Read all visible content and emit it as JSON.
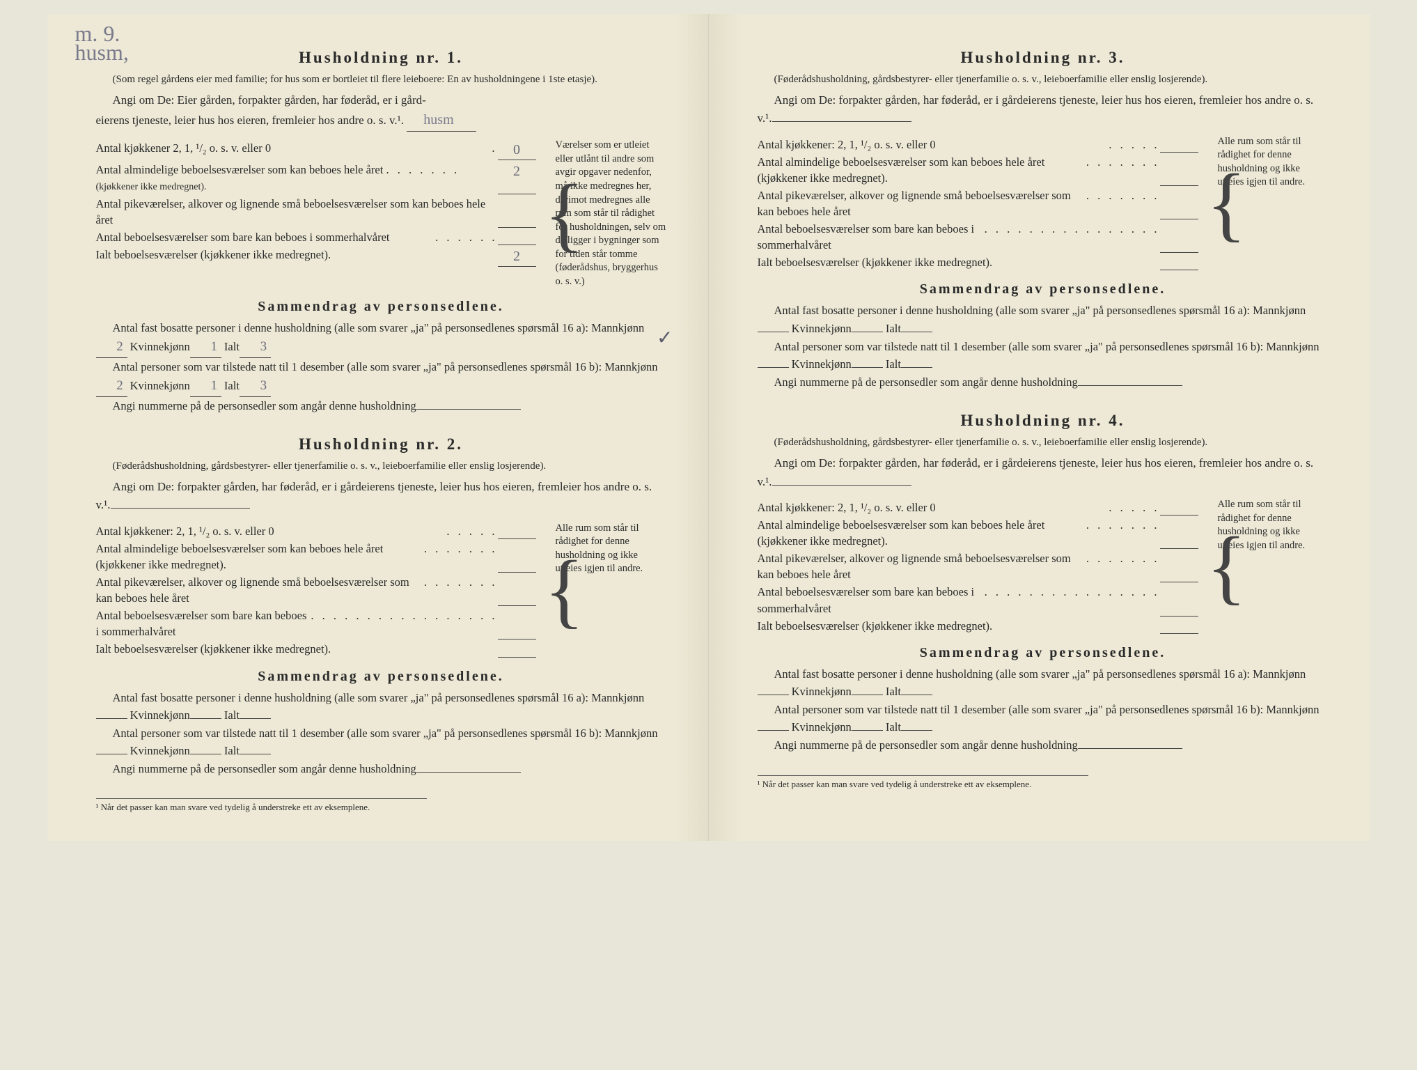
{
  "handnote_top": "m. 9.\nhusm,",
  "sections": [
    {
      "title": "Husholdning nr. 1.",
      "note": "(Som regel gårdens eier med familie; for hus som er bortleiet til flere leieboere: En av husholdningene i 1ste etasje).",
      "prompt_pre": "Angi om De:  Eier gården, forpakter gården, har føderåd, er i gård-",
      "prompt_post": "eierens tjeneste, leier hus hos eieren, fremleier hos andre o. s. v.¹.",
      "prompt_answer": "husm",
      "rows": [
        {
          "label": "Antal kjøkkener 2, 1, ¹/₂ o. s. v. eller 0",
          "value": "0"
        },
        {
          "label": "Antal almindelige beboelsesværelser som kan beboes hele året",
          "value": "2",
          "sub": "(kjøkkener ikke medregnet)."
        },
        {
          "label": "Antal pikeværelser, alkover og lignende små beboelsesværelser som kan beboes hele året",
          "value": ""
        },
        {
          "label": "Antal beboelsesværelser som bare kan beboes i sommerhalvåret",
          "value": ""
        },
        {
          "label": "Ialt beboelsesværelser (kjøkkener ikke medregnet).",
          "value": "2"
        }
      ],
      "sidenote": "Værelser som er utleiet eller utlånt til andre som avgir opgaver nedenfor, må ikke medregnes her, derimot medregnes alle rum som står til rådighet for husholdningen, selv om de ligger i bygninger som for tiden står tomme (føderådshus, bryggerhus o. s. v.)",
      "summary_title": "Sammendrag av personsedlene.",
      "s1": "Antal fast bosatte personer i denne husholdning (alle som svarer „ja\" på personsedlenes spørsmål 16 a):",
      "s1_m": "2",
      "s1_k": "1",
      "s1_i": "3",
      "s2": "Antal personer som var tilstede natt til 1 desember (alle som svarer „ja\" på personsedlenes spørsmål 16 b):",
      "s2_m": "2",
      "s2_k": "1",
      "s2_i": "3",
      "s3": "Angi nummerne på de personsedler som angår denne husholdning",
      "checkmark": "✓"
    },
    {
      "title": "Husholdning nr. 2.",
      "note": "(Føderådshusholdning, gårdsbestyrer- eller tjenerfamilie o. s. v., leieboerfamilie eller enslig losjerende).",
      "prompt": "Angi om De:  forpakter gården, har føderåd, er i gårdeierens tjeneste, leier hus hos eieren, fremleier hos andre o. s. v.¹.",
      "rows": [
        {
          "label": "Antal kjøkkener: 2, 1, ¹/₂ o. s. v. eller 0",
          "value": ""
        },
        {
          "label": "Antal almindelige beboelsesværelser som kan beboes hele året (kjøkkener ikke medregnet).",
          "value": ""
        },
        {
          "label": "Antal pikeværelser, alkover og lignende små beboelsesværelser som kan beboes hele året",
          "value": ""
        },
        {
          "label": "Antal beboelsesværelser som bare kan beboes i sommerhalvåret",
          "value": ""
        },
        {
          "label": "Ialt beboelsesværelser (kjøkkener ikke medregnet).",
          "value": ""
        }
      ],
      "sidenote": "Alle rum som står til rådighet for denne husholdning og ikke utleies igjen til andre.",
      "summary_title": "Sammendrag av personsedlene.",
      "s1": "Antal fast bosatte personer i denne husholdning (alle som svarer „ja\" på personsedlenes spørsmål 16 a):",
      "s2": "Antal personer som var tilstede natt til 1 desember (alle som svarer „ja\" på personsedlenes spørsmål 16 b):",
      "s3": "Angi nummerne på de personsedler som angår denne husholdning"
    },
    {
      "title": "Husholdning nr. 3.",
      "note": "(Føderådshusholdning, gårdsbestyrer- eller tjenerfamilie o. s. v., leieboerfamilie eller enslig losjerende).",
      "prompt": "Angi om De:  forpakter gården, har føderåd, er i gårdeierens tjeneste, leier hus hos eieren, fremleier hos andre o. s. v.¹.",
      "rows": [
        {
          "label": "Antal kjøkkener: 2, 1, ¹/₂ o. s. v. eller 0",
          "value": ""
        },
        {
          "label": "Antal almindelige beboelsesværelser som kan beboes hele året (kjøkkener ikke medregnet).",
          "value": ""
        },
        {
          "label": "Antal pikeværelser, alkover og lignende små beboelsesværelser som kan beboes hele året",
          "value": ""
        },
        {
          "label": "Antal beboelsesværelser som bare kan beboes i sommerhalvåret",
          "value": ""
        },
        {
          "label": "Ialt beboelsesværelser (kjøkkener ikke medregnet).",
          "value": ""
        }
      ],
      "sidenote": "Alle rum som står til rådighet for denne husholdning og ikke utleies igjen til andre.",
      "summary_title": "Sammendrag av personsedlene.",
      "s1": "Antal fast bosatte personer i denne husholdning (alle som svarer „ja\" på personsedlenes spørsmål 16 a):",
      "s2": "Antal personer som var tilstede natt til 1 desember (alle som svarer „ja\" på personsedlenes spørsmål 16 b):",
      "s3": "Angi nummerne på de personsedler som angår denne husholdning"
    },
    {
      "title": "Husholdning nr. 4.",
      "note": "(Føderådshusholdning, gårdsbestyrer- eller tjenerfamilie o. s. v., leieboerfamilie eller enslig losjerende).",
      "prompt": "Angi om De:  forpakter gården, har føderåd, er i gårdeierens tjeneste, leier hus hos eieren, fremleier hos andre o. s. v.¹.",
      "rows": [
        {
          "label": "Antal kjøkkener: 2, 1, ¹/₂ o. s. v. eller 0",
          "value": ""
        },
        {
          "label": "Antal almindelige beboelsesværelser som kan beboes hele året (kjøkkener ikke medregnet).",
          "value": ""
        },
        {
          "label": "Antal pikeværelser, alkover og lignende små beboelsesværelser som kan beboes hele året",
          "value": ""
        },
        {
          "label": "Antal beboelsesværelser som bare kan beboes i sommerhalvåret",
          "value": ""
        },
        {
          "label": "Ialt beboelsesværelser (kjøkkener ikke medregnet).",
          "value": ""
        }
      ],
      "sidenote": "Alle rum som står til rådighet for denne husholdning og ikke utleies igjen til andre.",
      "summary_title": "Sammendrag av personsedlene.",
      "s1": "Antal fast bosatte personer i denne husholdning (alle som svarer „ja\" på personsedlenes spørsmål 16 a):",
      "s2": "Antal personer som var tilstede natt til 1 desember (alle som svarer „ja\" på personsedlenes spørsmål 16 b):",
      "s3": "Angi nummerne på de personsedler som angår denne husholdning"
    }
  ],
  "labels": {
    "mann": "Mannkjønn",
    "kvinne": "Kvinnekjønn",
    "ialt": "Ialt"
  },
  "footnote": "¹ Når det passer kan man svare ved tydelig å understreke ett av eksemplene."
}
